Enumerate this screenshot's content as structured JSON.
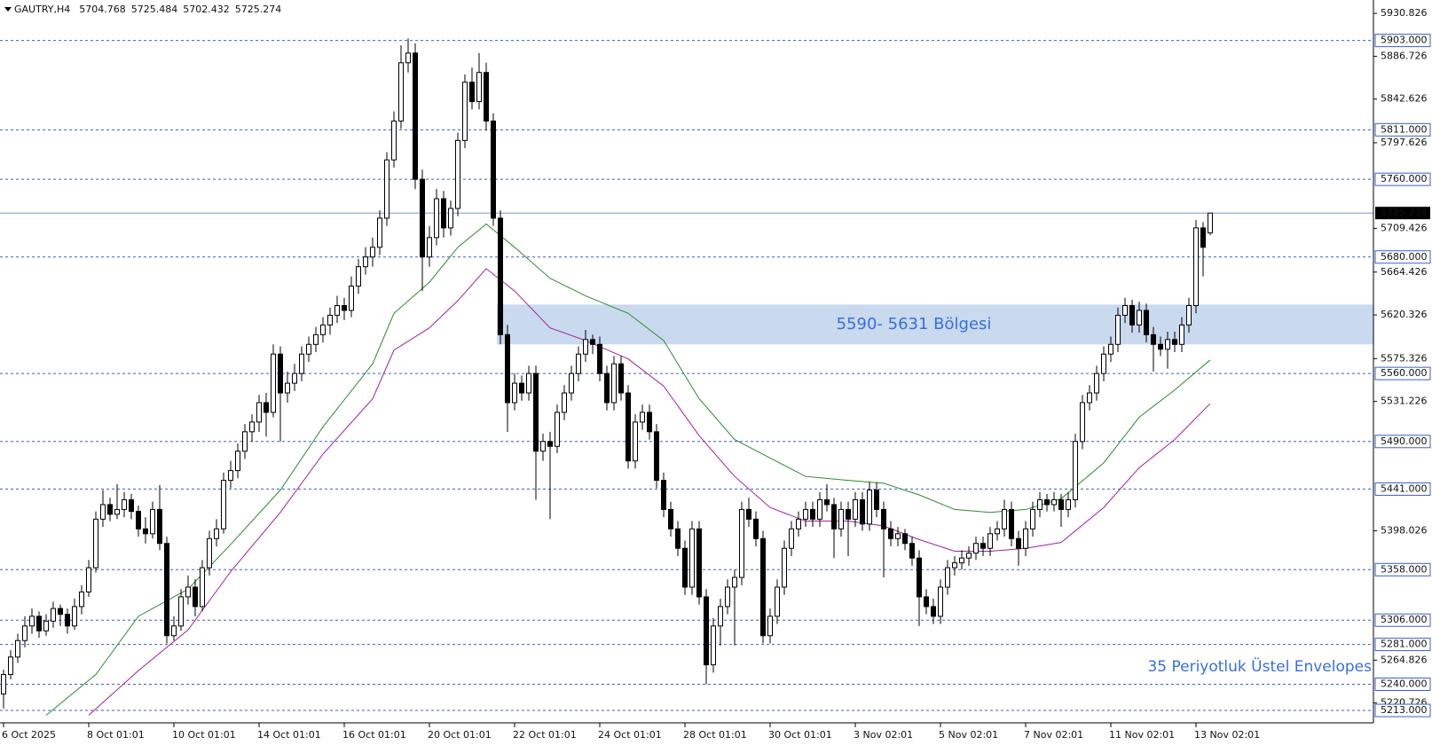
{
  "chart_data": {
    "type": "candlestick",
    "title": "GAUTRY,H4",
    "ylim": [
      5203,
      5941
    ],
    "yticks": [
      5930.826,
      5886.726,
      5842.626,
      5797.626,
      5709.426,
      5664.426,
      5620.326,
      5575.326,
      5531.226,
      5398.026,
      5264.826,
      5220.726
    ],
    "grid": false,
    "levels": [
      {
        "value": 5903,
        "label": "5903.000"
      },
      {
        "value": 5811,
        "label": "5811.000"
      },
      {
        "value": 5760,
        "label": "5760.000"
      },
      {
        "value": 5680,
        "label": "5680.000"
      },
      {
        "value": 5560,
        "label": "5560.000"
      },
      {
        "value": 5490,
        "label": "5490.000"
      },
      {
        "value": 5441,
        "label": "5441.000"
      },
      {
        "value": 5358,
        "label": "5358.000"
      },
      {
        "value": 5306,
        "label": "5306.000"
      },
      {
        "value": 5281,
        "label": "5281.000"
      },
      {
        "value": 5240,
        "label": "5240.000"
      },
      {
        "value": 5213,
        "label": "5213.000"
      }
    ],
    "zone": {
      "from": 5590,
      "to": 5631,
      "label": "5590- 5631 Bölgesi",
      "color": "#c9d9ee"
    },
    "annotation": "35 Periyotluk Üstel Envelopes",
    "xticks": [
      {
        "value": 0,
        "label": "6 Oct 2025"
      },
      {
        "value": 12,
        "label": "8 Oct 01:01"
      },
      {
        "value": 24,
        "label": "10 Oct 01:01"
      },
      {
        "value": 36,
        "label": "14 Oct 01:01"
      },
      {
        "value": 48,
        "label": "16 Oct 01:01"
      },
      {
        "value": 60,
        "label": "20 Oct 01:01"
      },
      {
        "value": 72,
        "label": "22 Oct 01:01"
      },
      {
        "value": 84,
        "label": "24 Oct 01:01"
      },
      {
        "value": 96,
        "label": "28 Oct 01:01"
      },
      {
        "value": 108,
        "label": "30 Oct 01:01"
      },
      {
        "value": 120,
        "label": "3 Nov 02:01"
      },
      {
        "value": 132,
        "label": "5 Nov 02:01"
      },
      {
        "value": 144,
        "label": "7 Nov 02:01"
      },
      {
        "value": 156,
        "label": "11 Nov 02:01"
      },
      {
        "value": 168,
        "label": "13 Nov 02:01"
      }
    ],
    "candles": [
      [
        5230,
        5255,
        5215,
        5250
      ],
      [
        5250,
        5275,
        5245,
        5268
      ],
      [
        5268,
        5292,
        5262,
        5285
      ],
      [
        5285,
        5310,
        5278,
        5300
      ],
      [
        5300,
        5318,
        5292,
        5310
      ],
      [
        5310,
        5315,
        5288,
        5295
      ],
      [
        5295,
        5312,
        5290,
        5305
      ],
      [
        5305,
        5325,
        5298,
        5318
      ],
      [
        5318,
        5322,
        5300,
        5312
      ],
      [
        5312,
        5318,
        5292,
        5300
      ],
      [
        5300,
        5328,
        5296,
        5320
      ],
      [
        5320,
        5342,
        5312,
        5335
      ],
      [
        5335,
        5368,
        5330,
        5360
      ],
      [
        5360,
        5418,
        5355,
        5410
      ],
      [
        5410,
        5440,
        5402,
        5425
      ],
      [
        5425,
        5432,
        5408,
        5415
      ],
      [
        5415,
        5446,
        5410,
        5420
      ],
      [
        5420,
        5438,
        5412,
        5430
      ],
      [
        5430,
        5436,
        5410,
        5418
      ],
      [
        5418,
        5424,
        5392,
        5400
      ],
      [
        5400,
        5412,
        5385,
        5395
      ],
      [
        5395,
        5428,
        5390,
        5420
      ],
      [
        5420,
        5445,
        5378,
        5385
      ],
      [
        5385,
        5392,
        5282,
        5290
      ],
      [
        5290,
        5310,
        5285,
        5300
      ],
      [
        5300,
        5338,
        5295,
        5330
      ],
      [
        5330,
        5352,
        5322,
        5340
      ],
      [
        5340,
        5348,
        5310,
        5320
      ],
      [
        5320,
        5368,
        5315,
        5360
      ],
      [
        5360,
        5398,
        5352,
        5390
      ],
      [
        5390,
        5410,
        5382,
        5400
      ],
      [
        5400,
        5458,
        5395,
        5450
      ],
      [
        5450,
        5470,
        5442,
        5460
      ],
      [
        5460,
        5488,
        5452,
        5480
      ],
      [
        5480,
        5508,
        5472,
        5500
      ],
      [
        5500,
        5518,
        5490,
        5510
      ],
      [
        5510,
        5538,
        5500,
        5530
      ],
      [
        5530,
        5540,
        5495,
        5520
      ],
      [
        5520,
        5590,
        5515,
        5580
      ],
      [
        5580,
        5588,
        5490,
        5540
      ],
      [
        5540,
        5562,
        5530,
        5550
      ],
      [
        5550,
        5570,
        5542,
        5560
      ],
      [
        5560,
        5588,
        5552,
        5580
      ],
      [
        5580,
        5598,
        5572,
        5590
      ],
      [
        5590,
        5608,
        5582,
        5600
      ],
      [
        5600,
        5618,
        5592,
        5610
      ],
      [
        5610,
        5628,
        5600,
        5620
      ],
      [
        5620,
        5640,
        5612,
        5630
      ],
      [
        5630,
        5638,
        5615,
        5625
      ],
      [
        5625,
        5660,
        5618,
        5650
      ],
      [
        5650,
        5678,
        5642,
        5670
      ],
      [
        5670,
        5690,
        5662,
        5680
      ],
      [
        5680,
        5700,
        5670,
        5690
      ],
      [
        5690,
        5728,
        5682,
        5720
      ],
      [
        5720,
        5788,
        5712,
        5780
      ],
      [
        5780,
        5830,
        5772,
        5820
      ],
      [
        5820,
        5898,
        5812,
        5880
      ],
      [
        5880,
        5905,
        5870,
        5890
      ],
      [
        5890,
        5900,
        5750,
        5760
      ],
      [
        5760,
        5770,
        5645,
        5680
      ],
      [
        5680,
        5712,
        5670,
        5700
      ],
      [
        5700,
        5750,
        5692,
        5740
      ],
      [
        5740,
        5748,
        5700,
        5710
      ],
      [
        5710,
        5738,
        5702,
        5730
      ],
      [
        5730,
        5808,
        5722,
        5800
      ],
      [
        5800,
        5868,
        5792,
        5860
      ],
      [
        5860,
        5875,
        5832,
        5840
      ],
      [
        5840,
        5890,
        5832,
        5870
      ],
      [
        5870,
        5880,
        5810,
        5820
      ],
      [
        5820,
        5828,
        5712,
        5720
      ],
      [
        5720,
        5728,
        5590,
        5600
      ],
      [
        5600,
        5610,
        5500,
        5530
      ],
      [
        5530,
        5560,
        5522,
        5550
      ],
      [
        5550,
        5558,
        5532,
        5540
      ],
      [
        5540,
        5568,
        5532,
        5560
      ],
      [
        5560,
        5568,
        5430,
        5480
      ],
      [
        5480,
        5498,
        5470,
        5490
      ],
      [
        5490,
        5500,
        5410,
        5485
      ],
      [
        5485,
        5528,
        5478,
        5520
      ],
      [
        5520,
        5548,
        5512,
        5540
      ],
      [
        5540,
        5568,
        5532,
        5560
      ],
      [
        5560,
        5588,
        5552,
        5580
      ],
      [
        5580,
        5605,
        5572,
        5595
      ],
      [
        5595,
        5600,
        5580,
        5590
      ],
      [
        5590,
        5598,
        5552,
        5560
      ],
      [
        5560,
        5568,
        5522,
        5530
      ],
      [
        5530,
        5578,
        5522,
        5570
      ],
      [
        5570,
        5578,
        5532,
        5540
      ],
      [
        5540,
        5548,
        5462,
        5470
      ],
      [
        5470,
        5518,
        5462,
        5510
      ],
      [
        5510,
        5528,
        5502,
        5520
      ],
      [
        5520,
        5528,
        5492,
        5500
      ],
      [
        5500,
        5508,
        5442,
        5450
      ],
      [
        5450,
        5458,
        5412,
        5420
      ],
      [
        5420,
        5428,
        5392,
        5400
      ],
      [
        5400,
        5408,
        5372,
        5380
      ],
      [
        5380,
        5388,
        5332,
        5340
      ],
      [
        5340,
        5408,
        5332,
        5400
      ],
      [
        5400,
        5408,
        5322,
        5330
      ],
      [
        5330,
        5338,
        5240,
        5260
      ],
      [
        5260,
        5308,
        5252,
        5300
      ],
      [
        5300,
        5328,
        5280,
        5320
      ],
      [
        5320,
        5348,
        5312,
        5340
      ],
      [
        5340,
        5358,
        5280,
        5350
      ],
      [
        5350,
        5428,
        5342,
        5420
      ],
      [
        5420,
        5432,
        5402,
        5410
      ],
      [
        5410,
        5418,
        5382,
        5390
      ],
      [
        5390,
        5398,
        5282,
        5290
      ],
      [
        5290,
        5318,
        5282,
        5310
      ],
      [
        5310,
        5348,
        5302,
        5340
      ],
      [
        5340,
        5388,
        5332,
        5380
      ],
      [
        5380,
        5408,
        5372,
        5400
      ],
      [
        5400,
        5418,
        5392,
        5410
      ],
      [
        5410,
        5428,
        5402,
        5420
      ],
      [
        5420,
        5428,
        5402,
        5410
      ],
      [
        5410,
        5438,
        5402,
        5430
      ],
      [
        5430,
        5446,
        5418,
        5425
      ],
      [
        5425,
        5432,
        5370,
        5400
      ],
      [
        5400,
        5428,
        5392,
        5420
      ],
      [
        5420,
        5428,
        5372,
        5410
      ],
      [
        5410,
        5438,
        5402,
        5430
      ],
      [
        5430,
        5438,
        5398,
        5405
      ],
      [
        5405,
        5448,
        5398,
        5440
      ],
      [
        5440,
        5448,
        5412,
        5420
      ],
      [
        5420,
        5428,
        5350,
        5400
      ],
      [
        5400,
        5408,
        5382,
        5390
      ],
      [
        5390,
        5402,
        5382,
        5395
      ],
      [
        5395,
        5400,
        5378,
        5385
      ],
      [
        5385,
        5392,
        5362,
        5370
      ],
      [
        5370,
        5378,
        5300,
        5330
      ],
      [
        5330,
        5338,
        5312,
        5320
      ],
      [
        5320,
        5328,
        5302,
        5310
      ],
      [
        5310,
        5348,
        5302,
        5340
      ],
      [
        5340,
        5368,
        5332,
        5360
      ],
      [
        5360,
        5372,
        5352,
        5365
      ],
      [
        5365,
        5378,
        5358,
        5370
      ],
      [
        5370,
        5382,
        5362,
        5375
      ],
      [
        5375,
        5392,
        5368,
        5385
      ],
      [
        5385,
        5392,
        5372,
        5380
      ],
      [
        5380,
        5402,
        5372,
        5395
      ],
      [
        5395,
        5408,
        5388,
        5400
      ],
      [
        5400,
        5430,
        5392,
        5420
      ],
      [
        5420,
        5428,
        5382,
        5390
      ],
      [
        5390,
        5398,
        5362,
        5380
      ],
      [
        5380,
        5408,
        5372,
        5400
      ],
      [
        5400,
        5428,
        5392,
        5420
      ],
      [
        5420,
        5438,
        5412,
        5430
      ],
      [
        5430,
        5436,
        5418,
        5425
      ],
      [
        5425,
        5438,
        5418,
        5430
      ],
      [
        5430,
        5436,
        5402,
        5420
      ],
      [
        5420,
        5438,
        5412,
        5430
      ],
      [
        5430,
        5498,
        5422,
        5490
      ],
      [
        5490,
        5538,
        5482,
        5530
      ],
      [
        5530,
        5548,
        5522,
        5540
      ],
      [
        5540,
        5568,
        5532,
        5560
      ],
      [
        5560,
        5588,
        5552,
        5580
      ],
      [
        5580,
        5598,
        5572,
        5590
      ],
      [
        5590,
        5628,
        5582,
        5620
      ],
      [
        5620,
        5638,
        5612,
        5630
      ],
      [
        5630,
        5636,
        5602,
        5610
      ],
      [
        5610,
        5634,
        5602,
        5625
      ],
      [
        5625,
        5632,
        5592,
        5600
      ],
      [
        5600,
        5608,
        5562,
        5590
      ],
      [
        5590,
        5598,
        5578,
        5585
      ],
      [
        5585,
        5603,
        5565,
        5595
      ],
      [
        5595,
        5603,
        5582,
        5590
      ],
      [
        5590,
        5618,
        5582,
        5610
      ],
      [
        5610,
        5638,
        5602,
        5630
      ],
      [
        5630,
        5718,
        5622,
        5710
      ],
      [
        5710,
        5716,
        5660,
        5690
      ],
      [
        5704.768,
        5725.484,
        5702.432,
        5725.274
      ]
    ],
    "series": [
      {
        "color": "#2e8b2e",
        "x": [
          6,
          13,
          19,
          26,
          32,
          39,
          45,
          52,
          55,
          60,
          64,
          68,
          72,
          77,
          82,
          88,
          93,
          98,
          103,
          108,
          113,
          119,
          124,
          129,
          134,
          139,
          144,
          149,
          155,
          160,
          165,
          170
        ],
        "values": [
          5208,
          5250,
          5310,
          5338,
          5384,
          5440,
          5505,
          5570,
          5622,
          5654,
          5690,
          5714,
          5690,
          5658,
          5640,
          5622,
          5594,
          5534,
          5492,
          5473,
          5454,
          5450,
          5447,
          5435,
          5420,
          5417,
          5420,
          5431,
          5468,
          5515,
          5543,
          5574
        ]
      },
      {
        "color": "#a020a0",
        "x": [
          12,
          19,
          26,
          32,
          39,
          45,
          52,
          55,
          60,
          64,
          68,
          72,
          77,
          82,
          88,
          93,
          98,
          103,
          108,
          113,
          119,
          124,
          129,
          134,
          139,
          144,
          149,
          155,
          160,
          165,
          170
        ],
        "values": [
          5208,
          5254,
          5296,
          5356,
          5417,
          5477,
          5534,
          5584,
          5607,
          5635,
          5668,
          5645,
          5607,
          5594,
          5575,
          5547,
          5496,
          5454,
          5422,
          5408,
          5408,
          5403,
          5389,
          5377,
          5377,
          5380,
          5386,
          5422,
          5463,
          5492,
          5529
        ]
      }
    ]
  }
}
